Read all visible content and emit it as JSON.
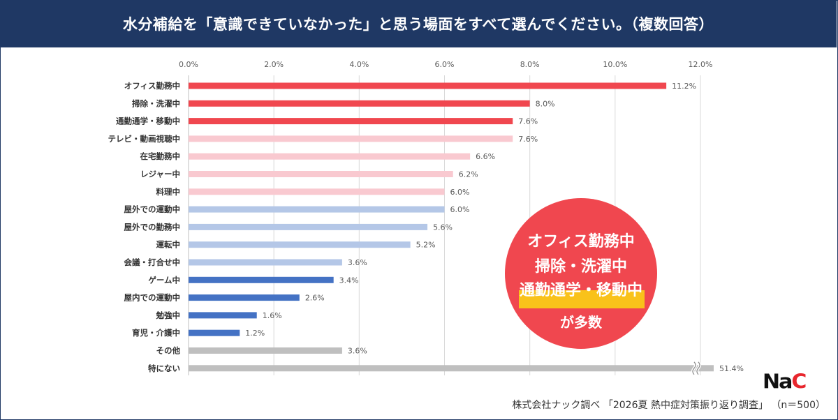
{
  "title": "水分補給を「意識できていなかった」と思う場面をすべて選んでください。（複数回答）",
  "chart_data": {
    "type": "bar",
    "orientation": "horizontal",
    "categories": [
      "オフィス勤務中",
      "掃除・洗濯中",
      "通勤通学・移動中",
      "テレビ・動画視聴中",
      "在宅勤務中",
      "レジャー中",
      "料理中",
      "屋外での運動中",
      "屋外での勤務中",
      "運転中",
      "会議・打合せ中",
      "ゲーム中",
      "屋内での運動中",
      "勉強中",
      "育児・介護中",
      "その他",
      "特にない"
    ],
    "values": [
      11.2,
      8.0,
      7.6,
      7.6,
      6.6,
      6.2,
      6.0,
      6.0,
      5.6,
      5.2,
      3.6,
      3.4,
      2.6,
      1.6,
      1.2,
      3.6,
      51.4
    ],
    "value_labels": [
      "11.2%",
      "8.0%",
      "7.6%",
      "7.6%",
      "6.6%",
      "6.2%",
      "6.0%",
      "6.0%",
      "5.6%",
      "5.2%",
      "3.6%",
      "3.4%",
      "2.6%",
      "1.6%",
      "1.2%",
      "3.6%",
      "51.4%"
    ],
    "bar_colors": [
      "#f0474f",
      "#f0474f",
      "#f0474f",
      "#f9c9d0",
      "#f9c9d0",
      "#f9c9d0",
      "#f9c9d0",
      "#b4c7e7",
      "#b4c7e7",
      "#b4c7e7",
      "#b4c7e7",
      "#4472c4",
      "#4472c4",
      "#4472c4",
      "#4472c4",
      "#bfbfbf",
      "#bfbfbf"
    ],
    "xlim": [
      0,
      12
    ],
    "x_ticks": [
      "0.0%",
      "2.0%",
      "4.0%",
      "6.0%",
      "8.0%",
      "10.0%",
      "12.0%"
    ],
    "axis_break_on": "特にない",
    "grid": true,
    "xlabel": "",
    "ylabel": ""
  },
  "callout": {
    "line1": "オフィス勤務中",
    "line2": "掃除・洗濯中",
    "line3": "通勤通学・移動中",
    "line4": "が多数",
    "bg_color": "#f0474f",
    "highlight_color": "#f9c21a"
  },
  "logo": {
    "prefix": "Na",
    "accent": "C"
  },
  "source": "株式会社ナック調べ 「2026夏 熱中症対策振り返り調査」 （n＝500）",
  "colors": {
    "header_bg": "#1f3864"
  }
}
